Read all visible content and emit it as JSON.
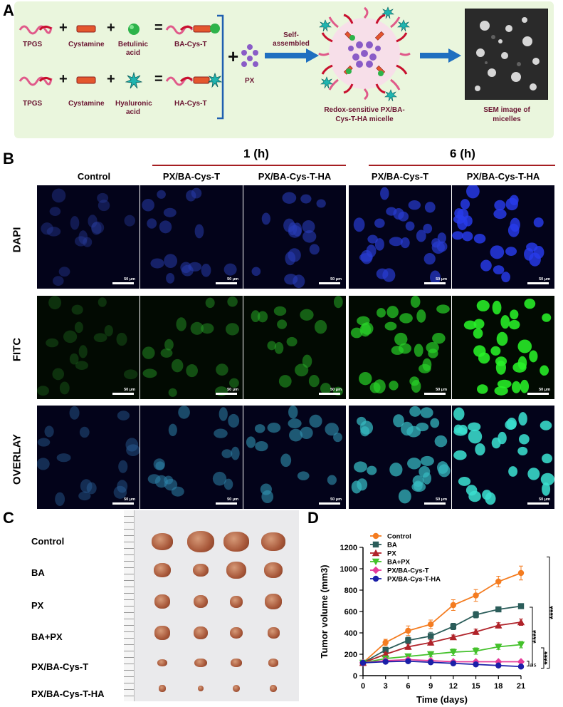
{
  "panelA": {
    "letter": "A",
    "row1": {
      "comp1": "TPGS",
      "comp2": "Cystamine",
      "comp3": "Betulinic acid",
      "product": "BA-Cys-T"
    },
    "row2": {
      "comp1": "TPGS",
      "comp2": "Cystamine",
      "comp3": "Hyaluronic acid",
      "product": "HA-Cys-T"
    },
    "px_label": "PX",
    "arrow_label": "Self-assembled",
    "micelle_label": "Redox-sensitive PX/BA-Cys-T-HA micelle",
    "sem_label": "SEM image of micelles",
    "plus": "+",
    "equals": "="
  },
  "panelB": {
    "letter": "B",
    "group_1h": "1 (h)",
    "group_6h": "6 (h)",
    "columns": [
      "Control",
      "PX/BA-Cys-T",
      "PX/BA-Cys-T-HA",
      "PX/BA-Cys-T",
      "PX/BA-Cys-T-HA"
    ],
    "rows": [
      "DAPI",
      "FITC",
      "OVERLAY"
    ],
    "scalebar": "50 μm"
  },
  "panelC": {
    "letter": "C",
    "groups": [
      "Control",
      "BA",
      "PX",
      "BA+PX",
      "PX/BA-Cys-T",
      "PX/BA-Cys-T-HA"
    ]
  },
  "chart_data": {
    "type": "line",
    "letter": "D",
    "xlabel": "Time (days)",
    "ylabel": "Tumor volume (mm3)",
    "x": [
      0,
      3,
      6,
      9,
      12,
      15,
      18,
      21
    ],
    "xlim": [
      0,
      21
    ],
    "ylim": [
      0,
      1200
    ],
    "yticks": [
      0,
      200,
      400,
      600,
      800,
      1000,
      1200
    ],
    "legend_position": "top-left",
    "series": [
      {
        "name": "Control",
        "color": "#f47c20",
        "marker": "circle",
        "values": [
          120,
          310,
          420,
          480,
          660,
          750,
          880,
          960
        ],
        "err": [
          15,
          30,
          45,
          40,
          50,
          55,
          50,
          65
        ]
      },
      {
        "name": "BA",
        "color": "#2b5d5a",
        "marker": "square",
        "values": [
          120,
          240,
          330,
          370,
          460,
          570,
          620,
          650
        ],
        "err": [
          10,
          25,
          30,
          35,
          30,
          30,
          20,
          20
        ]
      },
      {
        "name": "PX",
        "color": "#b0232a",
        "marker": "triangle",
        "values": [
          120,
          200,
          270,
          310,
          360,
          410,
          470,
          500
        ],
        "err": [
          10,
          15,
          25,
          25,
          20,
          25,
          25,
          30
        ]
      },
      {
        "name": "BA+PX",
        "color": "#44c12b",
        "marker": "triangle-down",
        "values": [
          120,
          160,
          180,
          200,
          220,
          230,
          270,
          290
        ],
        "err": [
          10,
          15,
          15,
          25,
          30,
          30,
          25,
          30
        ]
      },
      {
        "name": "PX/BA-Cys-T",
        "color": "#e63b9a",
        "marker": "diamond",
        "values": [
          120,
          140,
          150,
          140,
          130,
          130,
          130,
          130
        ],
        "err": [
          10,
          10,
          10,
          10,
          10,
          10,
          10,
          10
        ]
      },
      {
        "name": "PX/BA-Cys-T-HA",
        "color": "#1b1fa8",
        "marker": "circle",
        "values": [
          120,
          130,
          135,
          125,
          115,
          105,
          95,
          85
        ],
        "err": [
          10,
          10,
          10,
          10,
          10,
          10,
          10,
          10
        ]
      }
    ],
    "annotations": {
      "sig1": "****",
      "sig2": "****",
      "sig3": "****",
      "ns": "ns"
    }
  }
}
